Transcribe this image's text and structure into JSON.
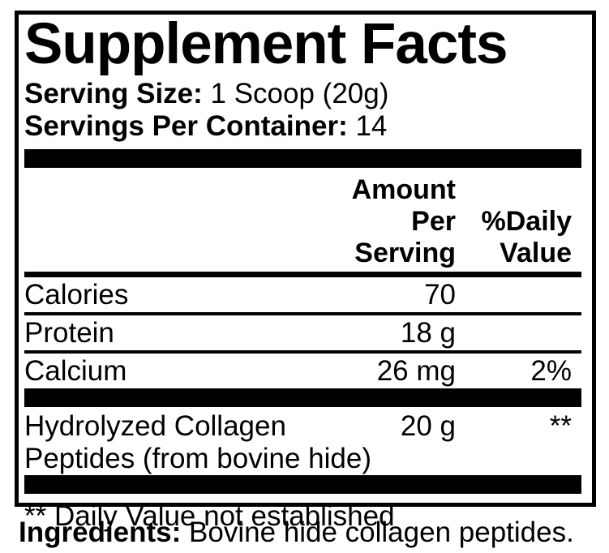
{
  "label": {
    "title": "Supplement Facts",
    "serving_size": {
      "label": "Serving Size:",
      "value": " 1 Scoop (20g)"
    },
    "servings_per_container": {
      "label": "Servings Per Container:",
      "value": " 14"
    },
    "header": {
      "amount_col": "Amount Per\nServing",
      "dv_col": "%Daily\nValue"
    },
    "rows": [
      {
        "name": "Calories",
        "amount": "70",
        "dv": ""
      },
      {
        "name": "Protein",
        "amount": "18 g",
        "dv": ""
      },
      {
        "name": "Calcium",
        "amount": "26 mg",
        "dv": "2%"
      }
    ],
    "collagen_row": {
      "name_line1": "Hydrolyzed Collagen",
      "name_line2": "Peptides (from bovine hide)",
      "amount": "20 g",
      "dv": "**"
    },
    "footnote": "** Daily Value not established"
  },
  "ingredients": {
    "label": "Ingredients:",
    "value": " Bovine hide collagen peptides."
  },
  "colors": {
    "ink": "#000000",
    "background": "#ffffff"
  }
}
